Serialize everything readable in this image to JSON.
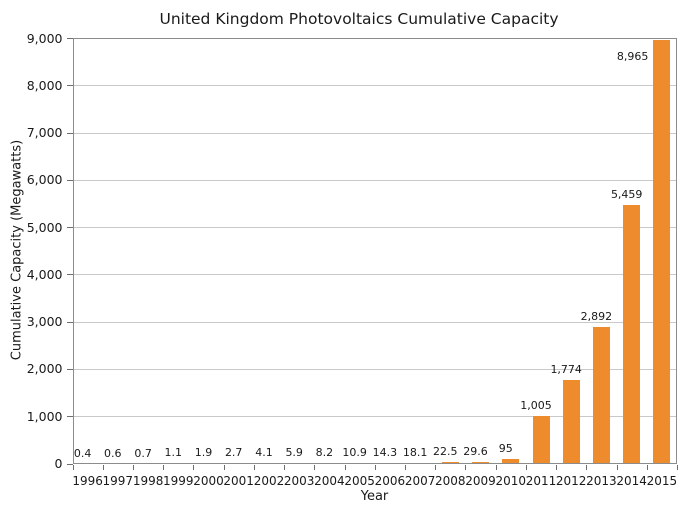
{
  "chart_data": {
    "type": "bar",
    "title": "United Kingdom Photovoltaics Cumulative Capacity",
    "xlabel": "Year",
    "ylabel": "Cumulative Capacity (Megawatts)",
    "categories": [
      "1996",
      "1997",
      "1998",
      "1999",
      "2000",
      "2001",
      "2002",
      "2003",
      "2004",
      "2005",
      "2006",
      "2007",
      "2008",
      "2009",
      "2010",
      "2011",
      "2012",
      "2013",
      "2014",
      "2015"
    ],
    "values": [
      0.4,
      0.6,
      0.7,
      1.1,
      1.9,
      2.7,
      4.1,
      5.9,
      8.2,
      10.9,
      14.3,
      18.1,
      22.5,
      29.6,
      95,
      1005,
      1774,
      2892,
      5459,
      8965
    ],
    "value_labels": [
      "0.4",
      "0.6",
      "0.7",
      "1.1",
      "1.9",
      "2.7",
      "4.1",
      "5.9",
      "8.2",
      "10.9",
      "14.3",
      "18.1",
      "22.5",
      "29.6",
      "95",
      "1,005",
      "1,774",
      "2,892",
      "5,459",
      "8,965"
    ],
    "ylim": [
      0,
      9000
    ],
    "ytick_step": 1000,
    "ytick_labels": [
      "0",
      "1,000",
      "2,000",
      "3,000",
      "4,000",
      "5,000",
      "6,000",
      "7,000",
      "8,000",
      "9,000"
    ],
    "grid": "horizontal",
    "legend": "none",
    "colors": {
      "bar": "#EE8C2D",
      "gridline": "#c9c9c9",
      "axis_border": "#8c8c8c",
      "tick_mark": "#6e6e6e",
      "text": "#1a1a1a",
      "background": "#ffffff"
    }
  }
}
